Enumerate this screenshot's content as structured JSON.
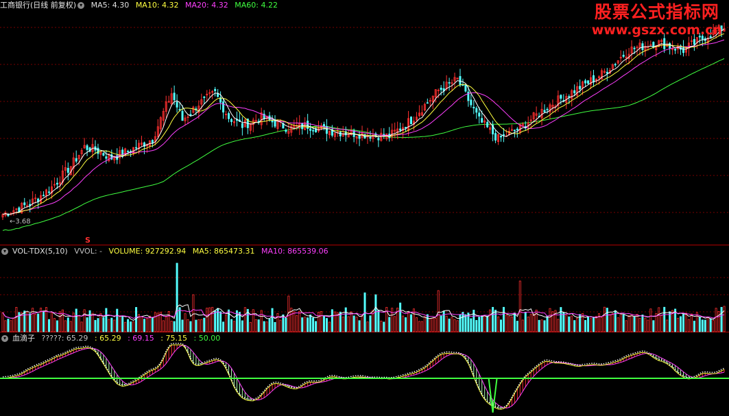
{
  "main_header": {
    "stock": "工商银行(日线 前复权)",
    "icon": "chevron-down-icon",
    "items": [
      {
        "text": "MA5: 4.30",
        "color": "#e0e0e0"
      },
      {
        "text": "MA10: 4.32",
        "color": "#ffff40"
      },
      {
        "text": "MA20: 4.32",
        "color": "#ff40ff"
      },
      {
        "text": "MA60: 4.22",
        "color": "#40ff40"
      }
    ]
  },
  "low_marker": "3.68",
  "signal_marker": "S",
  "vol_header": {
    "name": "VOL-TDX(5,10)",
    "items": [
      {
        "text": "VVOL: -",
        "color": "#c0c0c0"
      },
      {
        "text": "VOLUME: 927292.94",
        "color": "#ffff40"
      },
      {
        "text": "MA5: 865473.31",
        "color": "#ffff40"
      },
      {
        "text": "MA10: 865539.06",
        "color": "#ff40ff"
      }
    ]
  },
  "ind_header": {
    "name": "血滴子",
    "items": [
      {
        "text": "?????: 65.29",
        "color": "#c0c0c0"
      },
      {
        "text": ": 65.29",
        "color": "#ffff40"
      },
      {
        "text": ": 69.15",
        "color": "#ff40ff"
      },
      {
        "text": ": 75.15",
        "color": "#ffff40"
      },
      {
        "text": ": 50.00",
        "color": "#40ff40"
      }
    ]
  },
  "watermark": {
    "line1": "股票公式指标网",
    "line2": "www.gszx.com.cn"
  },
  "colors": {
    "up": "#ff3030",
    "down": "#54ffff",
    "ma5": "#ffffff",
    "ma10": "#ffff40",
    "ma20": "#ff40ff",
    "ma60": "#40ff40",
    "grid": "#7a0000"
  },
  "chart_data": [
    {
      "type": "candlestick",
      "ylim": [
        3.6,
        4.45
      ],
      "anchors_close": [
        [
          0,
          3.7
        ],
        [
          10,
          3.74
        ],
        [
          18,
          3.8
        ],
        [
          25,
          3.88
        ],
        [
          30,
          3.95
        ],
        [
          34,
          3.94
        ],
        [
          40,
          3.91
        ],
        [
          45,
          3.93
        ],
        [
          55,
          3.98
        ],
        [
          62,
          4.15
        ],
        [
          66,
          4.05
        ],
        [
          72,
          4.11
        ],
        [
          78,
          4.15
        ],
        [
          83,
          4.06
        ],
        [
          88,
          4.03
        ],
        [
          95,
          4.06
        ],
        [
          105,
          4.02
        ],
        [
          112,
          4.03
        ],
        [
          120,
          4.01
        ],
        [
          130,
          4.0
        ],
        [
          142,
          3.99
        ],
        [
          150,
          4.05
        ],
        [
          160,
          4.16
        ],
        [
          167,
          4.2
        ],
        [
          175,
          4.05
        ],
        [
          182,
          3.98
        ],
        [
          190,
          4.02
        ],
        [
          200,
          4.1
        ],
        [
          210,
          4.16
        ],
        [
          220,
          4.22
        ],
        [
          230,
          4.31
        ],
        [
          240,
          4.34
        ],
        [
          250,
          4.31
        ],
        [
          258,
          4.36
        ],
        [
          266,
          4.4
        ]
      ],
      "ma_series": [
        "MA5",
        "MA10",
        "MA20",
        "MA60"
      ]
    },
    {
      "type": "bar",
      "title": "VOL-TDX(5,10)",
      "ylim": [
        0,
        2700000
      ],
      "base_volume": 620000,
      "last_volume": 927292.94,
      "spikes": [
        [
          64,
          2500000
        ],
        [
          70,
          1350000
        ],
        [
          105,
          1300000
        ],
        [
          133,
          1420000
        ],
        [
          137,
          1350000
        ],
        [
          146,
          1050000
        ],
        [
          160,
          1500000
        ],
        [
          190,
          1850000
        ]
      ]
    },
    {
      "type": "line",
      "title": "血滴子",
      "ylim": [
        0,
        100
      ],
      "reference_line": 50,
      "values": [
        65.29,
        69.15,
        75.15,
        50.0
      ]
    }
  ]
}
